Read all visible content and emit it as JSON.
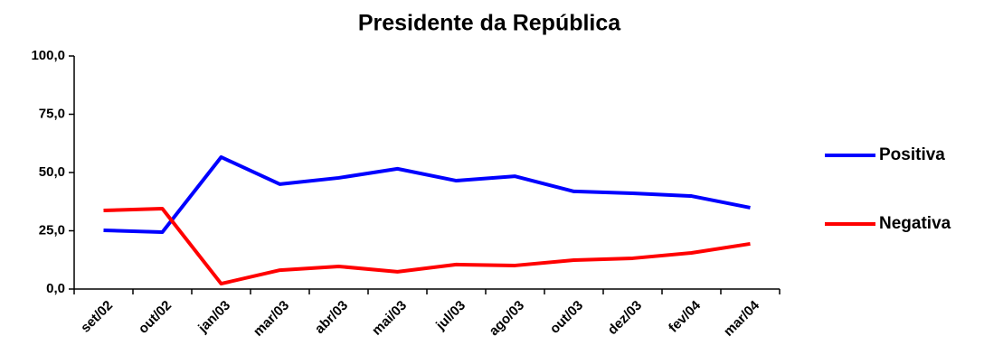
{
  "chart_data": {
    "type": "line",
    "title": "Presidente da República",
    "categories": [
      "set/02",
      "out/02",
      "jan/03",
      "mar/03",
      "abr/03",
      "mai/03",
      "jul/03",
      "ago/03",
      "out/03",
      "dez/03",
      "fev/04",
      "mar/04"
    ],
    "series": [
      {
        "name": "Positiva",
        "color": "#0000ff",
        "values": [
          25.2,
          24.4,
          56.6,
          45.0,
          47.7,
          51.6,
          46.5,
          48.4,
          41.9,
          41.1,
          39.9,
          34.9
        ]
      },
      {
        "name": "Negativa",
        "color": "#ff0000",
        "values": [
          33.7,
          34.5,
          2.3,
          8.1,
          9.7,
          7.4,
          10.5,
          10.1,
          12.4,
          13.2,
          15.5,
          19.4
        ]
      }
    ],
    "ylim": [
      0,
      100
    ],
    "yticks": [
      {
        "value": 0,
        "label": "0,0"
      },
      {
        "value": 25,
        "label": "25,0"
      },
      {
        "value": 50,
        "label": "50,0"
      },
      {
        "value": 75,
        "label": "75,0"
      },
      {
        "value": 100,
        "label": "100,0"
      }
    ],
    "grid": false,
    "legend": "right"
  }
}
